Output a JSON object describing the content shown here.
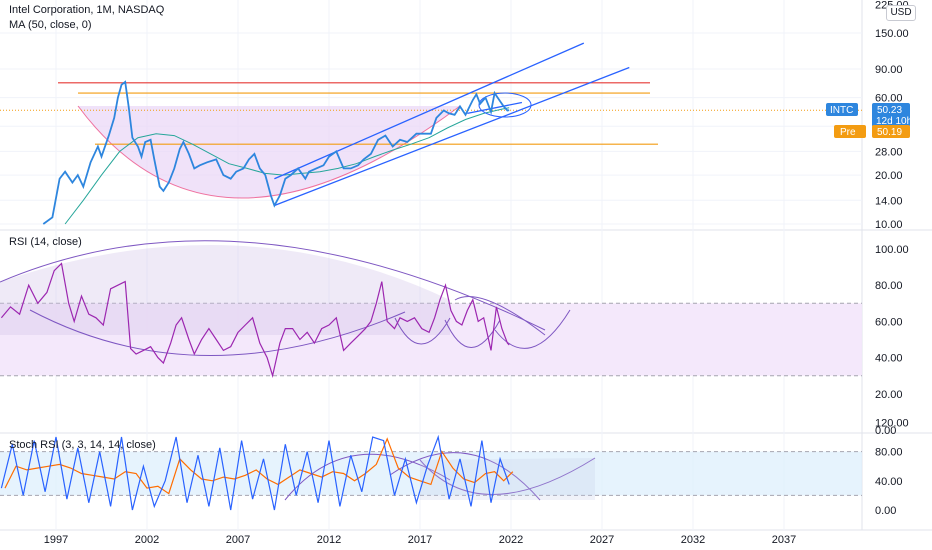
{
  "title": "Intel Corporation, 1M, NASDAQ",
  "currency": "USD",
  "indicators": {
    "ma_label": "MA (50, close, 0)",
    "rsi_label": "RSI (14, close)",
    "stoch_label": "Stoch RSI (3, 3, 14, 14, close)"
  },
  "price_tags": {
    "symbol": "INTC",
    "last": "50.23",
    "countdown": "12d 10h",
    "pre_label": "Pre",
    "pre_value": "50.19"
  },
  "colors": {
    "price_line": "#2e86de",
    "ma_line": "#26a69a",
    "red_line": "#e53935",
    "orange_line": "#f39c12",
    "channel": "#2962ff",
    "rsi_line": "#9c27b0",
    "stoch_k": "#2962ff",
    "stoch_d": "#ff6d00",
    "arc": "#7e57c2",
    "band_fill": "#e9d5f7",
    "stoch_band": "#dbeefc"
  },
  "chart_data": [
    {
      "type": "line",
      "pane": "price",
      "y_scale": "log",
      "y_ticks": [
        "225.00",
        "150.00",
        "90.00",
        "60.00",
        "40.00",
        "28.00",
        "20.00",
        "14.00",
        "10.00"
      ],
      "x_ticks": [
        "1997",
        "2002",
        "2007",
        "2012",
        "2017",
        "2022",
        "2027",
        "2032",
        "2037"
      ],
      "horizontal_levels": [
        {
          "color": "red",
          "value": 74
        },
        {
          "color": "orange",
          "value": 64
        },
        {
          "color": "orange",
          "value": 31
        }
      ],
      "series": [
        {
          "name": "INTC",
          "points": [
            [
              1996.3,
              10
            ],
            [
              1996.8,
              11
            ],
            [
              1997.2,
              19
            ],
            [
              1997.5,
              21
            ],
            [
              1997.9,
              18
            ],
            [
              1998.2,
              20
            ],
            [
              1998.5,
              17
            ],
            [
              1998.9,
              24
            ],
            [
              1999.3,
              30
            ],
            [
              1999.5,
              26
            ],
            [
              1999.9,
              35
            ],
            [
              2000.2,
              45
            ],
            [
              2000.4,
              60
            ],
            [
              2000.6,
              72
            ],
            [
              2000.8,
              75
            ],
            [
              2001.0,
              52
            ],
            [
              2001.2,
              34
            ],
            [
              2001.5,
              30
            ],
            [
              2001.7,
              26
            ],
            [
              2001.9,
              32
            ],
            [
              2002.2,
              33
            ],
            [
              2002.4,
              25
            ],
            [
              2002.7,
              17
            ],
            [
              2002.9,
              16
            ],
            [
              2003.2,
              18
            ],
            [
              2003.5,
              22
            ],
            [
              2003.8,
              29
            ],
            [
              2004.0,
              32
            ],
            [
              2004.3,
              27
            ],
            [
              2004.6,
              22
            ],
            [
              2004.9,
              23
            ],
            [
              2005.3,
              24
            ],
            [
              2005.8,
              25
            ],
            [
              2006.2,
              20
            ],
            [
              2006.6,
              19
            ],
            [
              2006.9,
              21
            ],
            [
              2007.3,
              22
            ],
            [
              2007.6,
              25
            ],
            [
              2007.9,
              27
            ],
            [
              2008.2,
              22
            ],
            [
              2008.5,
              20
            ],
            [
              2008.8,
              15
            ],
            [
              2009.0,
              13
            ],
            [
              2009.3,
              15
            ],
            [
              2009.6,
              19
            ],
            [
              2009.9,
              20
            ],
            [
              2010.3,
              22
            ],
            [
              2010.7,
              19
            ],
            [
              2010.9,
              21
            ],
            [
              2011.3,
              22
            ],
            [
              2011.7,
              23
            ],
            [
              2012.0,
              26
            ],
            [
              2012.4,
              28
            ],
            [
              2012.8,
              22
            ],
            [
              2013.2,
              22
            ],
            [
              2013.6,
              23
            ],
            [
              2013.9,
              25
            ],
            [
              2014.3,
              27
            ],
            [
              2014.7,
              33
            ],
            [
              2015.1,
              35
            ],
            [
              2015.5,
              30
            ],
            [
              2015.9,
              33
            ],
            [
              2016.3,
              32
            ],
            [
              2016.8,
              36
            ],
            [
              2017.2,
              36
            ],
            [
              2017.6,
              36
            ],
            [
              2017.9,
              45
            ],
            [
              2018.3,
              50
            ],
            [
              2018.6,
              48
            ],
            [
              2018.9,
              47
            ],
            [
              2019.2,
              53
            ],
            [
              2019.5,
              47
            ],
            [
              2019.9,
              58
            ],
            [
              2020.1,
              63
            ],
            [
              2020.3,
              55
            ],
            [
              2020.6,
              60
            ],
            [
              2020.9,
              49
            ],
            [
              2021.1,
              64
            ],
            [
              2021.4,
              57
            ],
            [
              2021.6,
              53
            ],
            [
              2021.8,
              50
            ],
            [
              2021.9,
              50.2
            ]
          ]
        },
        {
          "name": "MA (50, close, 0)",
          "points": [
            [
              1997.5,
              10
            ],
            [
              1998.5,
              14
            ],
            [
              1999.5,
              20
            ],
            [
              2000.5,
              28
            ],
            [
              2001.5,
              34
            ],
            [
              2002.5,
              36
            ],
            [
              2003.5,
              35
            ],
            [
              2004.5,
              31
            ],
            [
              2005.5,
              27
            ],
            [
              2006.5,
              23.5
            ],
            [
              2007.5,
              22
            ],
            [
              2008.5,
              20.5
            ],
            [
              2009.5,
              20
            ],
            [
              2010.5,
              20.5
            ],
            [
              2011.5,
              21
            ],
            [
              2012.5,
              22
            ],
            [
              2013.5,
              23.5
            ],
            [
              2014.5,
              26
            ],
            [
              2015.5,
              28.5
            ],
            [
              2016.5,
              31
            ],
            [
              2017.5,
              34
            ],
            [
              2018.5,
              39
            ],
            [
              2019.5,
              44
            ],
            [
              2020.5,
              48
            ],
            [
              2021.5,
              51
            ],
            [
              2021.9,
              52
            ]
          ]
        }
      ],
      "channel_lines": [
        {
          "from": [
            2009.0,
            19
          ],
          "to": [
            2026.0,
            130
          ]
        },
        {
          "from": [
            2009.0,
            13
          ],
          "to": [
            2028.5,
            92
          ]
        },
        {
          "from": [
            2019.6,
            48
          ],
          "to": [
            2022.6,
            56
          ]
        }
      ]
    },
    {
      "type": "line",
      "pane": "rsi",
      "y_ticks": [
        "100.00",
        "80.00",
        "60.00",
        "40.00",
        "20.00",
        "0.00"
      ],
      "ylim": [
        0,
        100
      ],
      "band": [
        30,
        70
      ],
      "series": [
        {
          "name": "RSI (14, close)",
          "points": [
            [
              1994.0,
              62
            ],
            [
              1994.5,
              68
            ],
            [
              1995.0,
              64
            ],
            [
              1995.5,
              80
            ],
            [
              1996.0,
              70
            ],
            [
              1996.5,
              76
            ],
            [
              1996.9,
              88
            ],
            [
              1997.3,
              92
            ],
            [
              1997.7,
              70
            ],
            [
              1998.0,
              60
            ],
            [
              1998.4,
              74
            ],
            [
              1998.8,
              64
            ],
            [
              1999.2,
              62
            ],
            [
              1999.6,
              58
            ],
            [
              2000.0,
              78
            ],
            [
              2000.4,
              80
            ],
            [
              2000.8,
              82
            ],
            [
              2001.1,
              45
            ],
            [
              2001.4,
              42
            ],
            [
              2001.8,
              44
            ],
            [
              2002.2,
              46
            ],
            [
              2002.6,
              40
            ],
            [
              2002.9,
              37
            ],
            [
              2003.3,
              48
            ],
            [
              2003.6,
              58
            ],
            [
              2003.9,
              62
            ],
            [
              2004.3,
              50
            ],
            [
              2004.6,
              42
            ],
            [
              2005.0,
              50
            ],
            [
              2005.4,
              56
            ],
            [
              2005.8,
              50
            ],
            [
              2006.2,
              44
            ],
            [
              2006.6,
              46
            ],
            [
              2007.0,
              54
            ],
            [
              2007.4,
              58
            ],
            [
              2007.8,
              62
            ],
            [
              2008.2,
              48
            ],
            [
              2008.6,
              40
            ],
            [
              2008.9,
              30
            ],
            [
              2009.3,
              48
            ],
            [
              2009.6,
              56
            ],
            [
              2010.0,
              56
            ],
            [
              2010.4,
              50
            ],
            [
              2010.8,
              54
            ],
            [
              2011.2,
              48
            ],
            [
              2011.6,
              56
            ],
            [
              2012.0,
              58
            ],
            [
              2012.4,
              62
            ],
            [
              2012.8,
              44
            ],
            [
              2013.2,
              48
            ],
            [
              2013.6,
              52
            ],
            [
              2014.0,
              56
            ],
            [
              2014.3,
              60
            ],
            [
              2014.6,
              70
            ],
            [
              2014.9,
              82
            ],
            [
              2015.2,
              60
            ],
            [
              2015.6,
              56
            ],
            [
              2015.9,
              62
            ],
            [
              2016.3,
              60
            ],
            [
              2016.7,
              62
            ],
            [
              2017.1,
              56
            ],
            [
              2017.5,
              54
            ],
            [
              2017.8,
              62
            ],
            [
              2018.1,
              72
            ],
            [
              2018.4,
              80
            ],
            [
              2018.7,
              66
            ],
            [
              2019.0,
              60
            ],
            [
              2019.3,
              58
            ],
            [
              2019.6,
              66
            ],
            [
              2019.9,
              72
            ],
            [
              2020.2,
              60
            ],
            [
              2020.5,
              62
            ],
            [
              2020.9,
              44
            ],
            [
              2021.2,
              68
            ],
            [
              2021.5,
              56
            ],
            [
              2021.8,
              48
            ],
            [
              2021.9,
              47
            ]
          ]
        }
      ]
    },
    {
      "type": "line",
      "pane": "stoch_rsi",
      "y_ticks": [
        "120.00",
        "80.00",
        "40.00",
        "0.00"
      ],
      "ylim": [
        -15,
        125
      ],
      "band": [
        20,
        80
      ],
      "series": [
        {
          "name": "%K",
          "points": [
            [
              1994.0,
              30
            ],
            [
              1994.6,
              90
            ],
            [
              1995.2,
              20
            ],
            [
              1995.8,
              95
            ],
            [
              1996.4,
              25
            ],
            [
              1997.0,
              100
            ],
            [
              1997.6,
              15
            ],
            [
              1998.2,
              85
            ],
            [
              1998.8,
              10
            ],
            [
              1999.4,
              80
            ],
            [
              2000.0,
              5
            ],
            [
              2000.6,
              100
            ],
            [
              2001.2,
              0
            ],
            [
              2001.8,
              60
            ],
            [
              2002.4,
              5
            ],
            [
              2003.0,
              40
            ],
            [
              2003.6,
              100
            ],
            [
              2004.2,
              10
            ],
            [
              2004.8,
              75
            ],
            [
              2005.4,
              5
            ],
            [
              2006.0,
              85
            ],
            [
              2006.6,
              0
            ],
            [
              2007.2,
              95
            ],
            [
              2007.8,
              15
            ],
            [
              2008.4,
              70
            ],
            [
              2009.0,
              0
            ],
            [
              2009.6,
              90
            ],
            [
              2010.2,
              20
            ],
            [
              2010.8,
              80
            ],
            [
              2011.4,
              10
            ],
            [
              2012.0,
              95
            ],
            [
              2012.6,
              5
            ],
            [
              2013.2,
              75
            ],
            [
              2013.8,
              25
            ],
            [
              2014.4,
              100
            ],
            [
              2015.0,
              95
            ],
            [
              2015.6,
              20
            ],
            [
              2016.2,
              70
            ],
            [
              2016.8,
              10
            ],
            [
              2017.4,
              60
            ],
            [
              2018.0,
              100
            ],
            [
              2018.6,
              15
            ],
            [
              2019.2,
              70
            ],
            [
              2019.8,
              5
            ],
            [
              2020.4,
              95
            ],
            [
              2020.9,
              10
            ],
            [
              2021.4,
              70
            ],
            [
              2021.9,
              35
            ]
          ]
        }
      ]
    }
  ]
}
